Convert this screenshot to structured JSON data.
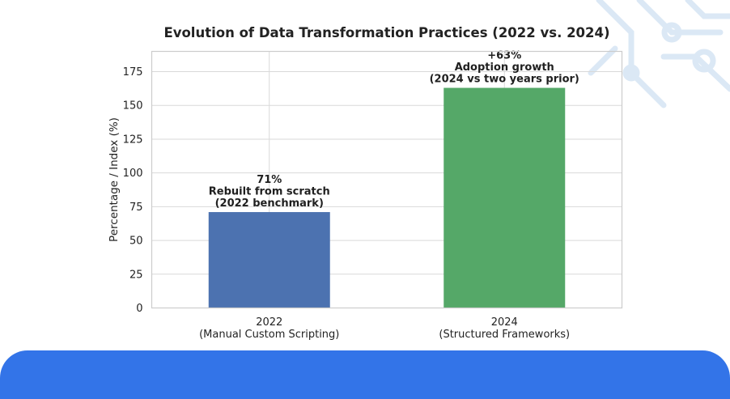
{
  "chart_data": {
    "type": "bar",
    "title": "Evolution of Data Transformation Practices (2022 vs. 2024)",
    "ylabel": "Percentage / Index (%)",
    "xlabel": "",
    "ylim": [
      0,
      190
    ],
    "yticks": [
      0,
      25,
      50,
      75,
      100,
      125,
      150,
      175
    ],
    "grid": true,
    "categories": [
      [
        "2022",
        "(Manual Custom Scripting)"
      ],
      [
        "2024",
        "(Structured Frameworks)"
      ]
    ],
    "values": [
      71,
      163
    ],
    "colors": [
      "#4c72b0",
      "#55a868"
    ],
    "annotations": [
      [
        "71%",
        "Rebuilt from scratch",
        "(2022 benchmark)"
      ],
      [
        "+63%",
        "Adoption growth",
        "(2024 vs two years prior)"
      ]
    ]
  },
  "theme": {
    "accent": "#3374e8",
    "decor": "#dbe8f5"
  }
}
